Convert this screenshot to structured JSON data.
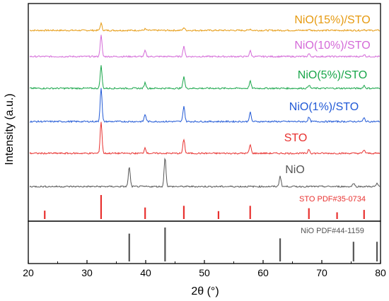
{
  "chart_data": {
    "type": "line",
    "xlabel": "2θ (°)",
    "ylabel": "Intensity (a.u.)",
    "xlim": [
      20,
      80
    ],
    "xticks": [
      20,
      30,
      40,
      50,
      60,
      70,
      80
    ],
    "grid": false,
    "legend": "inline labels on the right above each curve",
    "series": [
      {
        "name": "NiO(15%)/STO",
        "color": "#e69a10",
        "peaks": [
          {
            "x": 32.4,
            "h": 10
          },
          {
            "x": 39.9,
            "h": 2
          },
          {
            "x": 46.5,
            "h": 4
          },
          {
            "x": 57.8,
            "h": 2
          },
          {
            "x": 67.8,
            "h": 1.5
          },
          {
            "x": 77.2,
            "h": 1.5
          }
        ]
      },
      {
        "name": "NiO(10%)/STO",
        "color": "#d46ad8",
        "peaks": [
          {
            "x": 32.4,
            "h": 30
          },
          {
            "x": 39.9,
            "h": 8
          },
          {
            "x": 46.5,
            "h": 15
          },
          {
            "x": 57.8,
            "h": 8
          },
          {
            "x": 67.8,
            "h": 4
          },
          {
            "x": 77.2,
            "h": 3
          }
        ]
      },
      {
        "name": "NiO(5%)/STO",
        "color": "#19a64a",
        "peaks": [
          {
            "x": 32.4,
            "h": 32
          },
          {
            "x": 39.9,
            "h": 8
          },
          {
            "x": 46.5,
            "h": 17
          },
          {
            "x": 57.8,
            "h": 10
          },
          {
            "x": 67.8,
            "h": 5
          },
          {
            "x": 77.2,
            "h": 4
          }
        ]
      },
      {
        "name": "NiO(1%)/STO",
        "color": "#2159d6",
        "peaks": [
          {
            "x": 32.4,
            "h": 48
          },
          {
            "x": 39.9,
            "h": 10
          },
          {
            "x": 46.5,
            "h": 22
          },
          {
            "x": 57.8,
            "h": 13
          },
          {
            "x": 67.8,
            "h": 6
          },
          {
            "x": 77.2,
            "h": 5
          }
        ]
      },
      {
        "name": "STO",
        "color": "#e8312f",
        "peaks": [
          {
            "x": 32.4,
            "h": 45
          },
          {
            "x": 39.9,
            "h": 8
          },
          {
            "x": 46.5,
            "h": 20
          },
          {
            "x": 57.8,
            "h": 12
          },
          {
            "x": 67.8,
            "h": 6
          },
          {
            "x": 77.2,
            "h": 5
          }
        ]
      },
      {
        "name": "NiO",
        "color": "#555555",
        "peaks": [
          {
            "x": 37.2,
            "h": 28
          },
          {
            "x": 43.3,
            "h": 42
          },
          {
            "x": 62.9,
            "h": 15
          },
          {
            "x": 75.4,
            "h": 5
          },
          {
            "x": 79.4,
            "h": 4
          }
        ]
      }
    ],
    "references": [
      {
        "name": "STO PDF#35-0734",
        "color": "#e8312f",
        "lines": [
          {
            "x": 22.8,
            "h": 0.35
          },
          {
            "x": 32.4,
            "h": 1.0
          },
          {
            "x": 39.9,
            "h": 0.48
          },
          {
            "x": 46.5,
            "h": 0.55
          },
          {
            "x": 52.4,
            "h": 0.33
          },
          {
            "x": 57.8,
            "h": 0.55
          },
          {
            "x": 67.8,
            "h": 0.45
          },
          {
            "x": 72.6,
            "h": 0.28
          },
          {
            "x": 77.2,
            "h": 0.38
          }
        ]
      },
      {
        "name": "NiO PDF#44-1159",
        "color": "#555555",
        "lines": [
          {
            "x": 37.2,
            "h": 0.82
          },
          {
            "x": 43.3,
            "h": 1.0
          },
          {
            "x": 62.9,
            "h": 0.68
          },
          {
            "x": 75.4,
            "h": 0.58
          },
          {
            "x": 79.4,
            "h": 0.58
          }
        ]
      }
    ]
  }
}
